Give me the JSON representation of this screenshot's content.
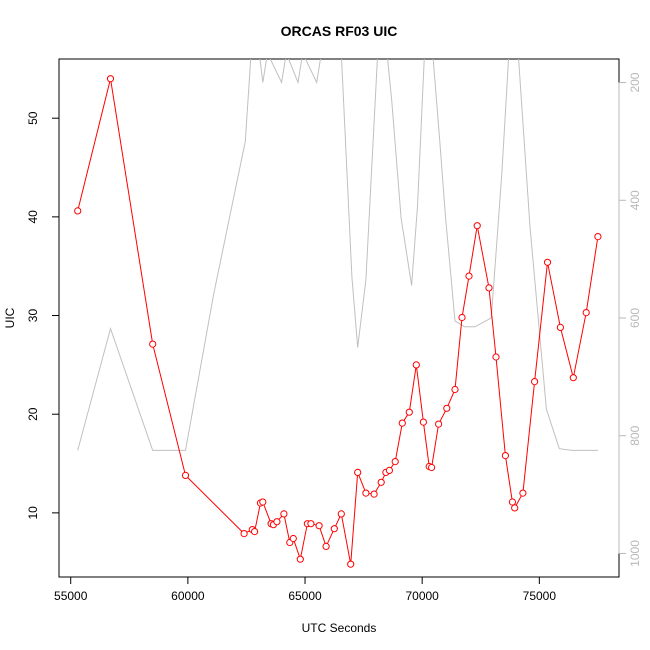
{
  "chart_data": {
    "type": "line",
    "title": "ORCAS RF03 UIC",
    "xlabel": "UTC Seconds",
    "ylabel": "UIC",
    "xlim": [
      54500,
      78400
    ],
    "ylim": [
      3.5,
      56
    ],
    "x_ticks": [
      55000,
      60000,
      65000,
      70000,
      75000
    ],
    "y_ticks": [
      10,
      20,
      30,
      40,
      50
    ],
    "right_axis": {
      "label": "",
      "ticks": [
        200,
        400,
        600,
        800,
        1000
      ],
      "lim_top": 160,
      "lim_bottom": 1040,
      "inverted": true,
      "color": "#b8b8b8"
    },
    "grid": false,
    "series": [
      {
        "name": "",
        "color": "#ff0000",
        "marker": "open-circle",
        "x": [
          55300,
          56700,
          58500,
          59900,
          62400,
          62750,
          62850,
          63100,
          63200,
          63550,
          63650,
          63800,
          64100,
          64350,
          64500,
          64800,
          65100,
          65250,
          65600,
          65900,
          66250,
          66550,
          66950,
          67250,
          67600,
          67950,
          68250,
          68450,
          68600,
          68850,
          69150,
          69450,
          69750,
          70050,
          70300,
          70400,
          70700,
          71050,
          71400,
          71700,
          72000,
          72350,
          72850,
          73150,
          73550,
          73850,
          73950,
          74300,
          74800,
          75350,
          75900,
          76450,
          77000,
          77500
        ],
        "y": [
          40.6,
          54.0,
          27.1,
          13.8,
          7.9,
          8.3,
          8.1,
          11.0,
          11.1,
          8.9,
          8.8,
          9.1,
          9.9,
          7.0,
          7.4,
          5.3,
          8.9,
          8.9,
          8.7,
          6.6,
          8.4,
          9.9,
          4.8,
          14.1,
          12.0,
          11.9,
          13.1,
          14.1,
          14.3,
          15.2,
          19.1,
          20.2,
          25.0,
          19.2,
          14.7,
          14.6,
          19.0,
          20.6,
          22.5,
          29.8,
          34.0,
          39.1,
          32.8,
          25.8,
          15.8,
          11.1,
          10.5,
          12.0,
          23.3,
          35.4,
          28.8,
          23.7,
          30.3,
          38.0
        ]
      },
      {
        "name": "",
        "color": "#c0c0c0",
        "marker": "none",
        "axis": "right",
        "x": [
          55300,
          56700,
          58500,
          59900,
          61100,
          62450,
          62700,
          63050,
          63200,
          63400,
          64000,
          64200,
          64700,
          64900,
          65500,
          65700,
          66100,
          66550,
          67000,
          67250,
          67600,
          68100,
          68500,
          68700,
          69100,
          69550,
          69800,
          70100,
          70450,
          70750,
          71000,
          71400,
          71800,
          72250,
          72950,
          73400,
          73700,
          74100,
          74600,
          75300,
          75850,
          76400,
          76900,
          77500
        ],
        "y": [
          825,
          618,
          825,
          825,
          560,
          300,
          150,
          150,
          200,
          150,
          200,
          150,
          200,
          150,
          200,
          150,
          150,
          150,
          530,
          650,
          535,
          150,
          150,
          230,
          430,
          545,
          410,
          150,
          150,
          300,
          430,
          605,
          615,
          615,
          600,
          355,
          150,
          150,
          445,
          755,
          822,
          825,
          825,
          825
        ]
      }
    ]
  }
}
